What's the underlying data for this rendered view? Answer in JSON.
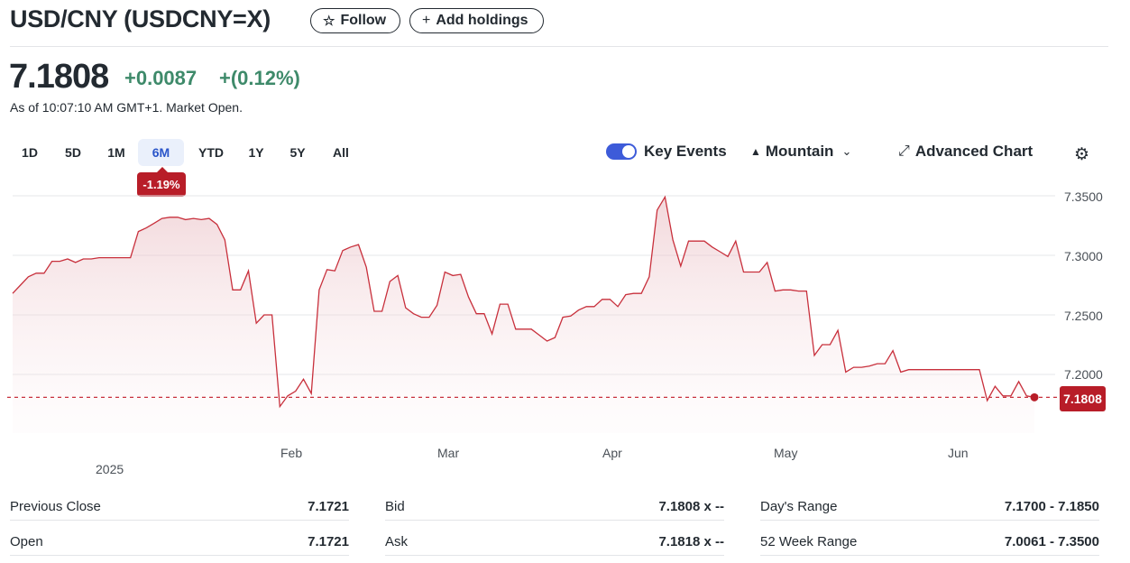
{
  "header": {
    "title": "USD/CNY (USDCNY=X)",
    "follow_label": "Follow",
    "add_holdings_label": "Add holdings"
  },
  "quote": {
    "price": "7.1808",
    "change": "+0.0087",
    "change_pct": "+(0.12%)",
    "as_of": "As of 10:07:10 AM GMT+1. Market Open.",
    "positive_color": "#3e8a6a"
  },
  "ranges": {
    "items": [
      "1D",
      "5D",
      "1M",
      "6M",
      "YTD",
      "1Y",
      "5Y",
      "All"
    ],
    "selected": "6M",
    "period_change": "-1.19%"
  },
  "toolbar": {
    "key_events_label": "Key Events",
    "key_events_on": true,
    "chart_type_label": "Mountain",
    "advanced_label": "Advanced Chart"
  },
  "chart_data": {
    "type": "area",
    "y_ticks": [
      "7.3500",
      "7.3000",
      "7.2500",
      "7.2000"
    ],
    "ylim": [
      7.155,
      7.355
    ],
    "x_ticks": [
      "Feb",
      "Mar",
      "Apr",
      "May",
      "Jun"
    ],
    "year_label": "2025",
    "current_value_label": "7.1808",
    "line_color": "#c8303c",
    "series": [
      {
        "values": [
          7.268,
          7.275,
          7.282,
          7.285,
          7.285,
          7.295,
          7.295,
          7.297,
          7.294,
          7.297,
          7.297,
          7.298,
          7.298,
          7.298,
          7.298,
          7.298,
          7.32,
          7.323,
          7.327,
          7.331,
          7.332,
          7.332,
          7.33,
          7.331,
          7.33,
          7.331,
          7.326,
          7.313,
          7.271,
          7.271,
          7.287,
          7.243,
          7.25,
          7.25,
          7.173,
          7.182,
          7.186,
          7.196,
          7.184,
          7.271,
          7.288,
          7.287,
          7.304,
          7.307,
          7.309,
          7.29,
          7.253,
          7.253,
          7.278,
          7.283,
          7.256,
          7.251,
          7.248,
          7.248,
          7.258,
          7.286,
          7.283,
          7.284,
          7.265,
          7.251,
          7.251,
          7.234,
          7.259,
          7.259,
          7.238,
          7.238,
          7.238,
          7.233,
          7.228,
          7.231,
          7.248,
          7.249,
          7.254,
          7.257,
          7.257,
          7.263,
          7.263,
          7.257,
          7.267,
          7.268,
          7.268,
          7.282,
          7.338,
          7.349,
          7.313,
          7.291,
          7.312,
          7.312,
          7.312,
          7.307,
          7.303,
          7.299,
          7.312,
          7.286,
          7.286,
          7.286,
          7.294,
          7.27,
          7.271,
          7.271,
          7.27,
          7.27,
          7.216,
          7.225,
          7.225,
          7.237,
          7.202,
          7.206,
          7.206,
          7.207,
          7.209,
          7.209,
          7.22,
          7.202,
          7.204,
          7.204,
          7.204,
          7.204,
          7.204,
          7.204,
          7.204,
          7.204,
          7.204,
          7.204,
          7.178,
          7.19,
          7.182,
          7.182,
          7.194,
          7.182,
          7.1808
        ]
      }
    ]
  },
  "stats": [
    {
      "label": "Previous Close",
      "value": "7.1721"
    },
    {
      "label": "Bid",
      "value": "7.1808 x --"
    },
    {
      "label": "Day's Range",
      "value": "7.1700 - 7.1850"
    },
    {
      "label": "Open",
      "value": "7.1721"
    },
    {
      "label": "Ask",
      "value": "7.1818 x --"
    },
    {
      "label": "52 Week Range",
      "value": "7.0061 - 7.3500"
    }
  ]
}
